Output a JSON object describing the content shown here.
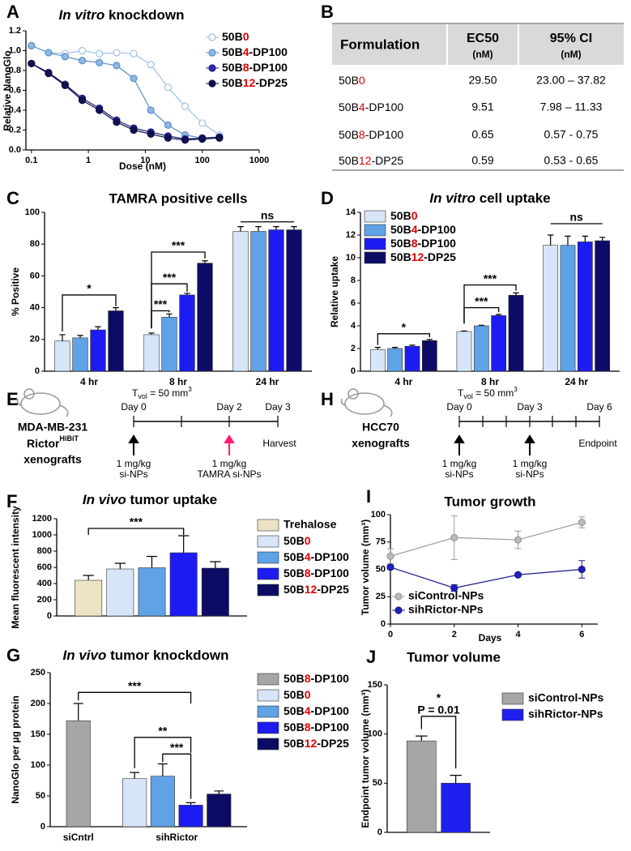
{
  "panel_labels": [
    "A",
    "B",
    "C",
    "D",
    "E",
    "F",
    "G",
    "H",
    "I",
    "J"
  ],
  "table": {
    "headers": [
      {
        "title": "Formulation"
      },
      {
        "title": "EC50",
        "unit": "(nM)"
      },
      {
        "title": "95% CI",
        "unit": "(nM)"
      }
    ],
    "rows": [
      [
        "50B0",
        "29.50",
        "23.00 – 37.82"
      ],
      [
        "50B4-DP100",
        "9.51",
        "7.98 – 11.33"
      ],
      [
        "50B8-DP100",
        "0.65",
        "0.57 - 0.75"
      ],
      [
        "50B12-DP25",
        "0.59",
        "0.53 - 0.65"
      ]
    ]
  },
  "timelines": [
    {
      "cell_line": "MDA-MB-231",
      "reporter": "Rictor",
      "reporter_tag": "HiBiT",
      "model": "xenografts",
      "tvol": {
        "symbol": "T",
        "subscript": "vol",
        "text": " = 50 mm",
        "superscript": "3"
      },
      "days": [
        "Day 0",
        "Day 2",
        "Day 3"
      ],
      "end_label": "Harvest",
      "doses": [
        {
          "amount": "1 mg/kg",
          "agent": "si-NPs"
        },
        {
          "amount": "1 mg/kg",
          "agent": "TAMRA si-NPs"
        }
      ]
    },
    {
      "cell_line": "HCC70",
      "model": "xenografts",
      "tvol": {
        "symbol": "T",
        "subscript": "vol",
        "text": " = 50 mm",
        "superscript": "3"
      },
      "days": [
        "Day 0",
        "Day 3",
        "Day 6"
      ],
      "end_label": "Endpoint",
      "doses": [
        {
          "amount": "1 mg/kg",
          "agent": "si-NPs"
        },
        {
          "amount": "1 mg/kg",
          "agent": "si-NPs"
        }
      ]
    }
  ],
  "chart_data": [
    {
      "type": "line",
      "title": "In vitro knockdown",
      "x_label": "Dose (nM)",
      "y_label": "Relative NanoGlo",
      "log_x": true,
      "x": [
        0.1,
        0.2,
        0.39,
        0.78,
        1.56,
        3.13,
        6.25,
        12.5,
        25,
        50,
        100,
        200
      ],
      "xlim": [
        0.08,
        1000
      ],
      "xticks": [
        0.1,
        1,
        10,
        100,
        1000
      ],
      "ylim": [
        0,
        1.2
      ],
      "yticks": [
        {
          "value": 0,
          "label": "0.0"
        },
        0.2,
        0.4,
        0.6,
        0.8,
        {
          "value": 1,
          "label": "1.0"
        },
        1.2
      ],
      "legend": "upper right",
      "series": [
        {
          "name": "50B0",
          "color": "#9cc0e6",
          "fill": "#ffffff",
          "values": [
            1.05,
            0.98,
            0.97,
            1.0,
            0.97,
            0.98,
            0.97,
            0.86,
            0.63,
            0.44,
            0.27,
            0.15
          ]
        },
        {
          "name": "50B4-DP100",
          "color": "#5a8fc8",
          "fill": "#8fb8e4",
          "values": [
            1.05,
            0.98,
            0.94,
            0.9,
            0.88,
            0.85,
            0.72,
            0.4,
            0.25,
            0.15,
            0.12,
            0.12
          ]
        },
        {
          "name": "50B8-DP100",
          "color": "#1a1a80",
          "fill": "#2b2bb5",
          "values": [
            0.87,
            0.78,
            0.66,
            0.52,
            0.42,
            0.3,
            0.22,
            0.18,
            0.14,
            0.11,
            0.12,
            0.13
          ]
        },
        {
          "name": "50B12-DP25",
          "color": "#0b0b40",
          "fill": "#111150",
          "values": [
            0.87,
            0.77,
            0.65,
            0.5,
            0.4,
            0.28,
            0.2,
            0.16,
            0.12,
            0.1,
            0.11,
            0.12
          ]
        }
      ]
    },
    {
      "type": "bar",
      "title": "TAMRA positive cells",
      "y_label": "% Positive",
      "categories": [
        "4 hr",
        "8 hr",
        "24 hr"
      ],
      "ylim": [
        0,
        100
      ],
      "yticks": [
        0,
        20,
        40,
        60,
        80,
        100
      ],
      "annotations": [
        "*",
        "***",
        "***",
        "***",
        "ns"
      ],
      "series": [
        {
          "name": "50B0",
          "color": "#d6e5f7",
          "values": [
            19,
            23,
            88
          ],
          "errors": [
            4,
            1,
            3
          ]
        },
        {
          "name": "50B4-DP100",
          "color": "#5fa2e6",
          "values": [
            21,
            34,
            88
          ],
          "errors": [
            1.5,
            2,
            3
          ]
        },
        {
          "name": "50B8-DP100",
          "color": "#1c1cf2",
          "values": [
            26,
            48,
            89
          ],
          "errors": [
            2,
            1,
            2
          ]
        },
        {
          "name": "50B12-DP25",
          "color": "#0c0c66",
          "values": [
            38,
            68,
            89
          ],
          "errors": [
            2,
            1.5,
            2
          ]
        }
      ]
    },
    {
      "type": "bar",
      "title": "In vitro cell uptake",
      "y_label": "Relative uptake",
      "categories": [
        "4 hr",
        "8 hr",
        "24 hr"
      ],
      "ylim": [
        0,
        14
      ],
      "yticks": [
        0,
        2,
        4,
        6,
        8,
        10,
        12,
        14
      ],
      "legend": "upper left",
      "annotations": [
        "*",
        "***",
        "***",
        "ns"
      ],
      "series": [
        {
          "name": "50B0",
          "color": "#d6e5f7",
          "values": [
            1.9,
            3.5,
            11.1
          ],
          "errors": [
            0.2,
            0.05,
            0.9
          ]
        },
        {
          "name": "50B4-DP100",
          "color": "#5fa2e6",
          "values": [
            2.0,
            4.0,
            11.1
          ],
          "errors": [
            0.1,
            0.05,
            0.8
          ]
        },
        {
          "name": "50B8-DP100",
          "color": "#1c1cf2",
          "values": [
            2.2,
            4.9,
            11.4
          ],
          "errors": [
            0.1,
            0.1,
            0.5
          ]
        },
        {
          "name": "50B12-DP25",
          "color": "#0c0c66",
          "values": [
            2.7,
            6.7,
            11.5
          ],
          "errors": [
            0.1,
            0.2,
            0.3
          ]
        }
      ]
    },
    {
      "type": "bar",
      "title": "In vivo tumor uptake",
      "y_label": "Mean fluorescent intensity",
      "categories": [
        null
      ],
      "ylim": [
        0,
        1200
      ],
      "yticks": [
        0,
        200,
        400,
        600,
        800,
        1000,
        1200
      ],
      "legend": "right",
      "annotations": [
        "***"
      ],
      "series": [
        {
          "name": "Trehalose",
          "color": "#ede3c4",
          "values": [
            440
          ],
          "errors": [
            60
          ]
        },
        {
          "name": "50B0",
          "color": "#d6e5f7",
          "values": [
            580
          ],
          "errors": [
            70
          ]
        },
        {
          "name": "50B4-DP100",
          "color": "#5fa2e6",
          "values": [
            595
          ],
          "errors": [
            140
          ]
        },
        {
          "name": "50B8-DP100",
          "color": "#1c1cf2",
          "values": [
            780
          ],
          "errors": [
            210
          ]
        },
        {
          "name": "50B12-DP25",
          "color": "#0c0c66",
          "values": [
            590
          ],
          "errors": [
            80
          ]
        }
      ]
    },
    {
      "type": "bar",
      "title": "In vivo tumor knockdown",
      "y_label": "NanoGlo per µg protein",
      "categories": [
        "siCntrl",
        "sihRictor"
      ],
      "ylim": [
        0,
        250
      ],
      "yticks": [
        0,
        50,
        100,
        150,
        200,
        250
      ],
      "legend": "right",
      "annotations": [
        "***",
        "**",
        "***"
      ],
      "series": [
        {
          "name": "50B8-DP100",
          "color": "#a6a6a6",
          "values": [
            172,
            null
          ],
          "errors": [
            28,
            null
          ]
        },
        {
          "name": "50B0",
          "color": "#d6e5f7",
          "values": [
            null,
            78
          ],
          "errors": [
            null,
            10
          ]
        },
        {
          "name": "50B4-DP100",
          "color": "#5fa2e6",
          "values": [
            null,
            82
          ],
          "errors": [
            null,
            20
          ]
        },
        {
          "name": "50B8-DP100",
          "color": "#1c1cf2",
          "values": [
            null,
            35
          ],
          "errors": [
            null,
            4
          ]
        },
        {
          "name": "50B12-DP25",
          "color": "#0c0c66",
          "values": [
            null,
            53
          ],
          "errors": [
            null,
            5
          ]
        }
      ]
    },
    {
      "type": "line",
      "title": "Tumor growth",
      "x_label": "Days",
      "y_label": "Tumor volume (mm³)",
      "x": [
        0,
        2,
        4,
        6
      ],
      "xlim": [
        0,
        6.5
      ],
      "xticks": [
        0,
        2,
        4,
        6
      ],
      "ylim": [
        0,
        100
      ],
      "yticks": [
        0,
        25,
        50,
        75,
        100
      ],
      "legend": "lower left",
      "series": [
        {
          "name": "siControl-NPs",
          "color": "#999999",
          "fill": "#bbbbbb",
          "values": [
            62,
            79,
            77,
            93
          ],
          "errors": [
            7,
            20,
            8,
            5
          ]
        },
        {
          "name": "sihRictor-NPs",
          "color": "#1a1a8c",
          "fill": "#2020c0",
          "values": [
            52,
            33,
            45,
            50
          ],
          "errors": [
            2,
            3,
            1,
            8
          ]
        }
      ]
    },
    {
      "type": "bar",
      "title": "Tumor volume",
      "y_label": "Endpoint tumor volume (mm³)",
      "categories": [
        null
      ],
      "ylim": [
        0,
        150
      ],
      "yticks": [
        0,
        50,
        100,
        150
      ],
      "legend": "right",
      "annotations": [
        "*",
        "P = 0.01"
      ],
      "series": [
        {
          "name": "siControl-NPs",
          "color": "#a6a6a6",
          "values": [
            93
          ],
          "errors": [
            5
          ]
        },
        {
          "name": "sihRictor-NPs",
          "color": "#1f1ff0",
          "values": [
            50
          ],
          "errors": [
            8
          ]
        }
      ]
    }
  ]
}
